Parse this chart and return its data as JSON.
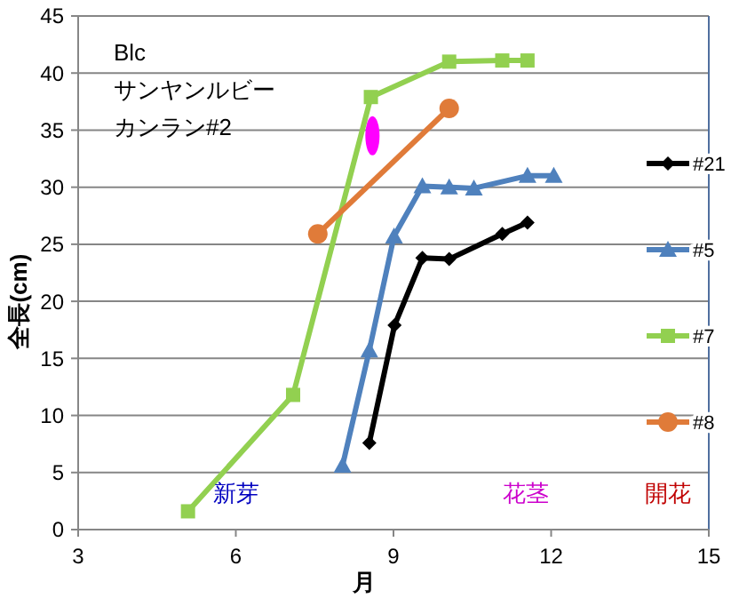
{
  "chart_data": {
    "type": "line",
    "xlabel": "月",
    "ylabel": "全長(cm)",
    "xlim": [
      3,
      15
    ],
    "xticks": [
      3,
      6,
      9,
      12,
      15
    ],
    "ylim": [
      0,
      45
    ],
    "yticks": [
      0,
      5,
      10,
      15,
      20,
      25,
      30,
      35,
      40,
      45
    ],
    "grid": "y",
    "legend": "right",
    "series": [
      {
        "name": "#21",
        "color": "#000000",
        "marker": "diamond",
        "x": [
          8.54,
          9.02,
          9.55,
          10.06,
          11.07,
          11.55
        ],
        "values": [
          7.6,
          17.9,
          23.8,
          23.7,
          25.9,
          26.9
        ]
      },
      {
        "name": "#5",
        "color": "#4f81bd",
        "marker": "triangle",
        "x": [
          8.03,
          8.54,
          9.01,
          9.55,
          10.06,
          10.53,
          11.55,
          12.05
        ],
        "values": [
          5.6,
          15.7,
          25.7,
          30.1,
          30,
          29.9,
          31,
          31
        ]
      },
      {
        "name": "#7",
        "color": "#92d050",
        "marker": "square",
        "x": [
          5.09,
          7.09,
          8.57,
          10.06,
          11.07,
          11.55
        ],
        "values": [
          1.6,
          11.8,
          37.9,
          41,
          41.1,
          41.1
        ]
      },
      {
        "name": "#8",
        "color": "#e07b39",
        "marker": "circle",
        "x": [
          7.56,
          10.06
        ],
        "values": [
          25.9,
          36.9
        ]
      }
    ],
    "annotations": [
      "Blc",
      "サンヤンルビー",
      "カンラン#2",
      "新芽",
      "花茎",
      "開花"
    ]
  }
}
